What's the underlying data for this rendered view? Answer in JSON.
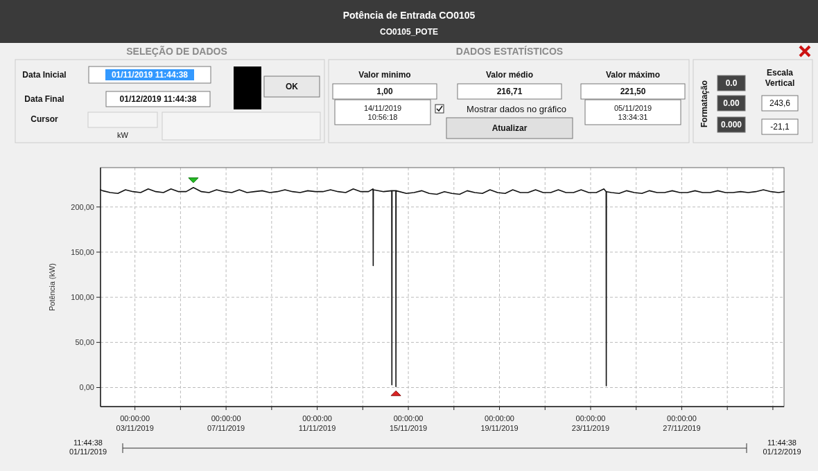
{
  "chart_data": {
    "type": "line",
    "title": "Potência de Entrada CO0105",
    "subtitle": "CO0105_POTE",
    "ylabel": "Potência (kW)",
    "xlim": [
      "2019-11-01T11:44:38",
      "2019-12-01T11:44:38"
    ],
    "xticks": [
      {
        "value": "2019-11-03T00:00",
        "label": "00:00:00\n03/11/2019"
      },
      {
        "value": "2019-11-05T00:00",
        "label": null
      },
      {
        "value": "2019-11-07T00:00",
        "label": "00:00:00\n07/11/2019"
      },
      {
        "value": "2019-11-09T00:00",
        "label": null
      },
      {
        "value": "2019-11-11T00:00",
        "label": "00:00:00\n11/11/2019"
      },
      {
        "value": "2019-11-13T00:00",
        "label": null
      },
      {
        "value": "2019-11-15T00:00",
        "label": "00:00:00\n15/11/2019"
      },
      {
        "value": "2019-11-17T00:00",
        "label": null
      },
      {
        "value": "2019-11-19T00:00",
        "label": "00:00:00\n19/11/2019"
      },
      {
        "value": "2019-11-21T00:00",
        "label": null
      },
      {
        "value": "2019-11-23T00:00",
        "label": "00:00:00\n23/11/2019"
      },
      {
        "value": "2019-11-25T00:00",
        "label": null
      },
      {
        "value": "2019-11-27T00:00",
        "label": "00:00:00\n27/11/2019"
      },
      {
        "value": "2019-11-29T00:00",
        "label": null
      },
      {
        "value": "2019-12-01T00:00",
        "label": null
      }
    ],
    "ylim": [
      -21.1,
      243.6
    ],
    "yticks": [
      {
        "value": 0,
        "label": "0,00"
      },
      {
        "value": 50,
        "label": "50,00"
      },
      {
        "value": 100,
        "label": "100,00"
      },
      {
        "value": 150,
        "label": "150,00"
      },
      {
        "value": 200,
        "label": "200,00"
      }
    ],
    "grid": true,
    "line_style": "solid",
    "series": [
      {
        "color": "#111111",
        "x": [
          "2019-11-01T11:45",
          "2019-11-01T14:00",
          "2019-11-01T22:00",
          "2019-11-02T06:00",
          "2019-11-02T14:00",
          "2019-11-02T22:00",
          "2019-11-03T06:00",
          "2019-11-03T14:00",
          "2019-11-03T22:00",
          "2019-11-04T06:00",
          "2019-11-04T14:00",
          "2019-11-04T22:00",
          "2019-11-05T06:00",
          "2019-11-05T13:34",
          "2019-11-05T22:00",
          "2019-11-06T06:00",
          "2019-11-06T14:00",
          "2019-11-06T22:00",
          "2019-11-07T06:00",
          "2019-11-07T14:00",
          "2019-11-07T22:00",
          "2019-11-08T06:00",
          "2019-11-08T14:00",
          "2019-11-08T22:00",
          "2019-11-09T06:00",
          "2019-11-09T14:00",
          "2019-11-09T22:00",
          "2019-11-10T06:00",
          "2019-11-10T14:00",
          "2019-11-10T22:00",
          "2019-11-11T06:00",
          "2019-11-11T14:00",
          "2019-11-11T22:00",
          "2019-11-12T06:00",
          "2019-11-12T14:00",
          "2019-11-12T22:00",
          "2019-11-13T06:00",
          "2019-11-13T10:50",
          "2019-11-13T11:00",
          "2019-11-13T11:10",
          "2019-11-13T22:00",
          "2019-11-14T06:30",
          "2019-11-14T06:40",
          "2019-11-14T06:50",
          "2019-11-14T10:50",
          "2019-11-14T10:56",
          "2019-11-14T11:05",
          "2019-11-14T22:00",
          "2019-11-15T06:00",
          "2019-11-15T14:00",
          "2019-11-15T22:00",
          "2019-11-16T06:00",
          "2019-11-16T14:00",
          "2019-11-16T22:00",
          "2019-11-17T06:00",
          "2019-11-17T14:00",
          "2019-11-17T22:00",
          "2019-11-18T06:00",
          "2019-11-18T14:00",
          "2019-11-18T22:00",
          "2019-11-19T06:00",
          "2019-11-19T14:00",
          "2019-11-19T22:00",
          "2019-11-20T06:00",
          "2019-11-20T14:00",
          "2019-11-20T22:00",
          "2019-11-21T06:00",
          "2019-11-21T14:00",
          "2019-11-21T22:00",
          "2019-11-22T06:00",
          "2019-11-22T14:00",
          "2019-11-22T22:00",
          "2019-11-23T06:00",
          "2019-11-23T14:00",
          "2019-11-23T16:20",
          "2019-11-23T16:30",
          "2019-11-23T16:40",
          "2019-11-23T22:00",
          "2019-11-24T06:00",
          "2019-11-24T14:00",
          "2019-11-24T22:00",
          "2019-11-25T06:00",
          "2019-11-25T14:00",
          "2019-11-25T22:00",
          "2019-11-26T06:00",
          "2019-11-26T14:00",
          "2019-11-26T22:00",
          "2019-11-27T06:00",
          "2019-11-27T14:00",
          "2019-11-27T22:00",
          "2019-11-28T06:00",
          "2019-11-28T14:00",
          "2019-11-28T22:00",
          "2019-11-29T06:00",
          "2019-11-29T14:00",
          "2019-11-29T22:00",
          "2019-11-30T06:00",
          "2019-11-30T14:00",
          "2019-11-30T22:00",
          "2019-12-01T06:00",
          "2019-12-01T11:44"
        ],
        "values": [
          219,
          218,
          216,
          215,
          219,
          217,
          216,
          220,
          217,
          216,
          220,
          217,
          217,
          221.5,
          217,
          216,
          219,
          217,
          216,
          219,
          216,
          217,
          218,
          216,
          217,
          219,
          217,
          216,
          218,
          217,
          217,
          219,
          217,
          216,
          220,
          217,
          217,
          220,
          135,
          219,
          217,
          218,
          3,
          218,
          218,
          1,
          218,
          215,
          216,
          218,
          215,
          214,
          217,
          215,
          214,
          218,
          216,
          215,
          219,
          216,
          215,
          219,
          216,
          216,
          219,
          216,
          216,
          219,
          216,
          216,
          219,
          216,
          216,
          220,
          217,
          2,
          217,
          216,
          215,
          218,
          216,
          215,
          218,
          216,
          216,
          218,
          216,
          216,
          218,
          216,
          216,
          218,
          216,
          216,
          217,
          216,
          217,
          219,
          217,
          216,
          217
        ]
      }
    ],
    "annotations": [
      "SELEÇÃO DE DADOS",
      "DADOS ESTATÍSTICOS",
      "Data Inicial",
      "01/11/2019 11:44:38",
      "Data Final",
      "01/12/2019 11:44:38",
      "OK",
      "Cursor",
      "kW",
      "Valor minimo",
      "1,00",
      "14/11/2019\n10:56:18",
      "Valor médio",
      "216,71",
      "Mostrar dados no gráfico",
      "Atualizar",
      "Valor máximo",
      "221,50",
      "05/11/2019\n13:34:31",
      "Formatação",
      "0.0",
      "0.00",
      "0.000",
      "Escala\nVertical",
      "243,6",
      "-21,1",
      "11:44:38\n01/11/2019",
      "11:44:38\n01/12/2019"
    ]
  }
}
